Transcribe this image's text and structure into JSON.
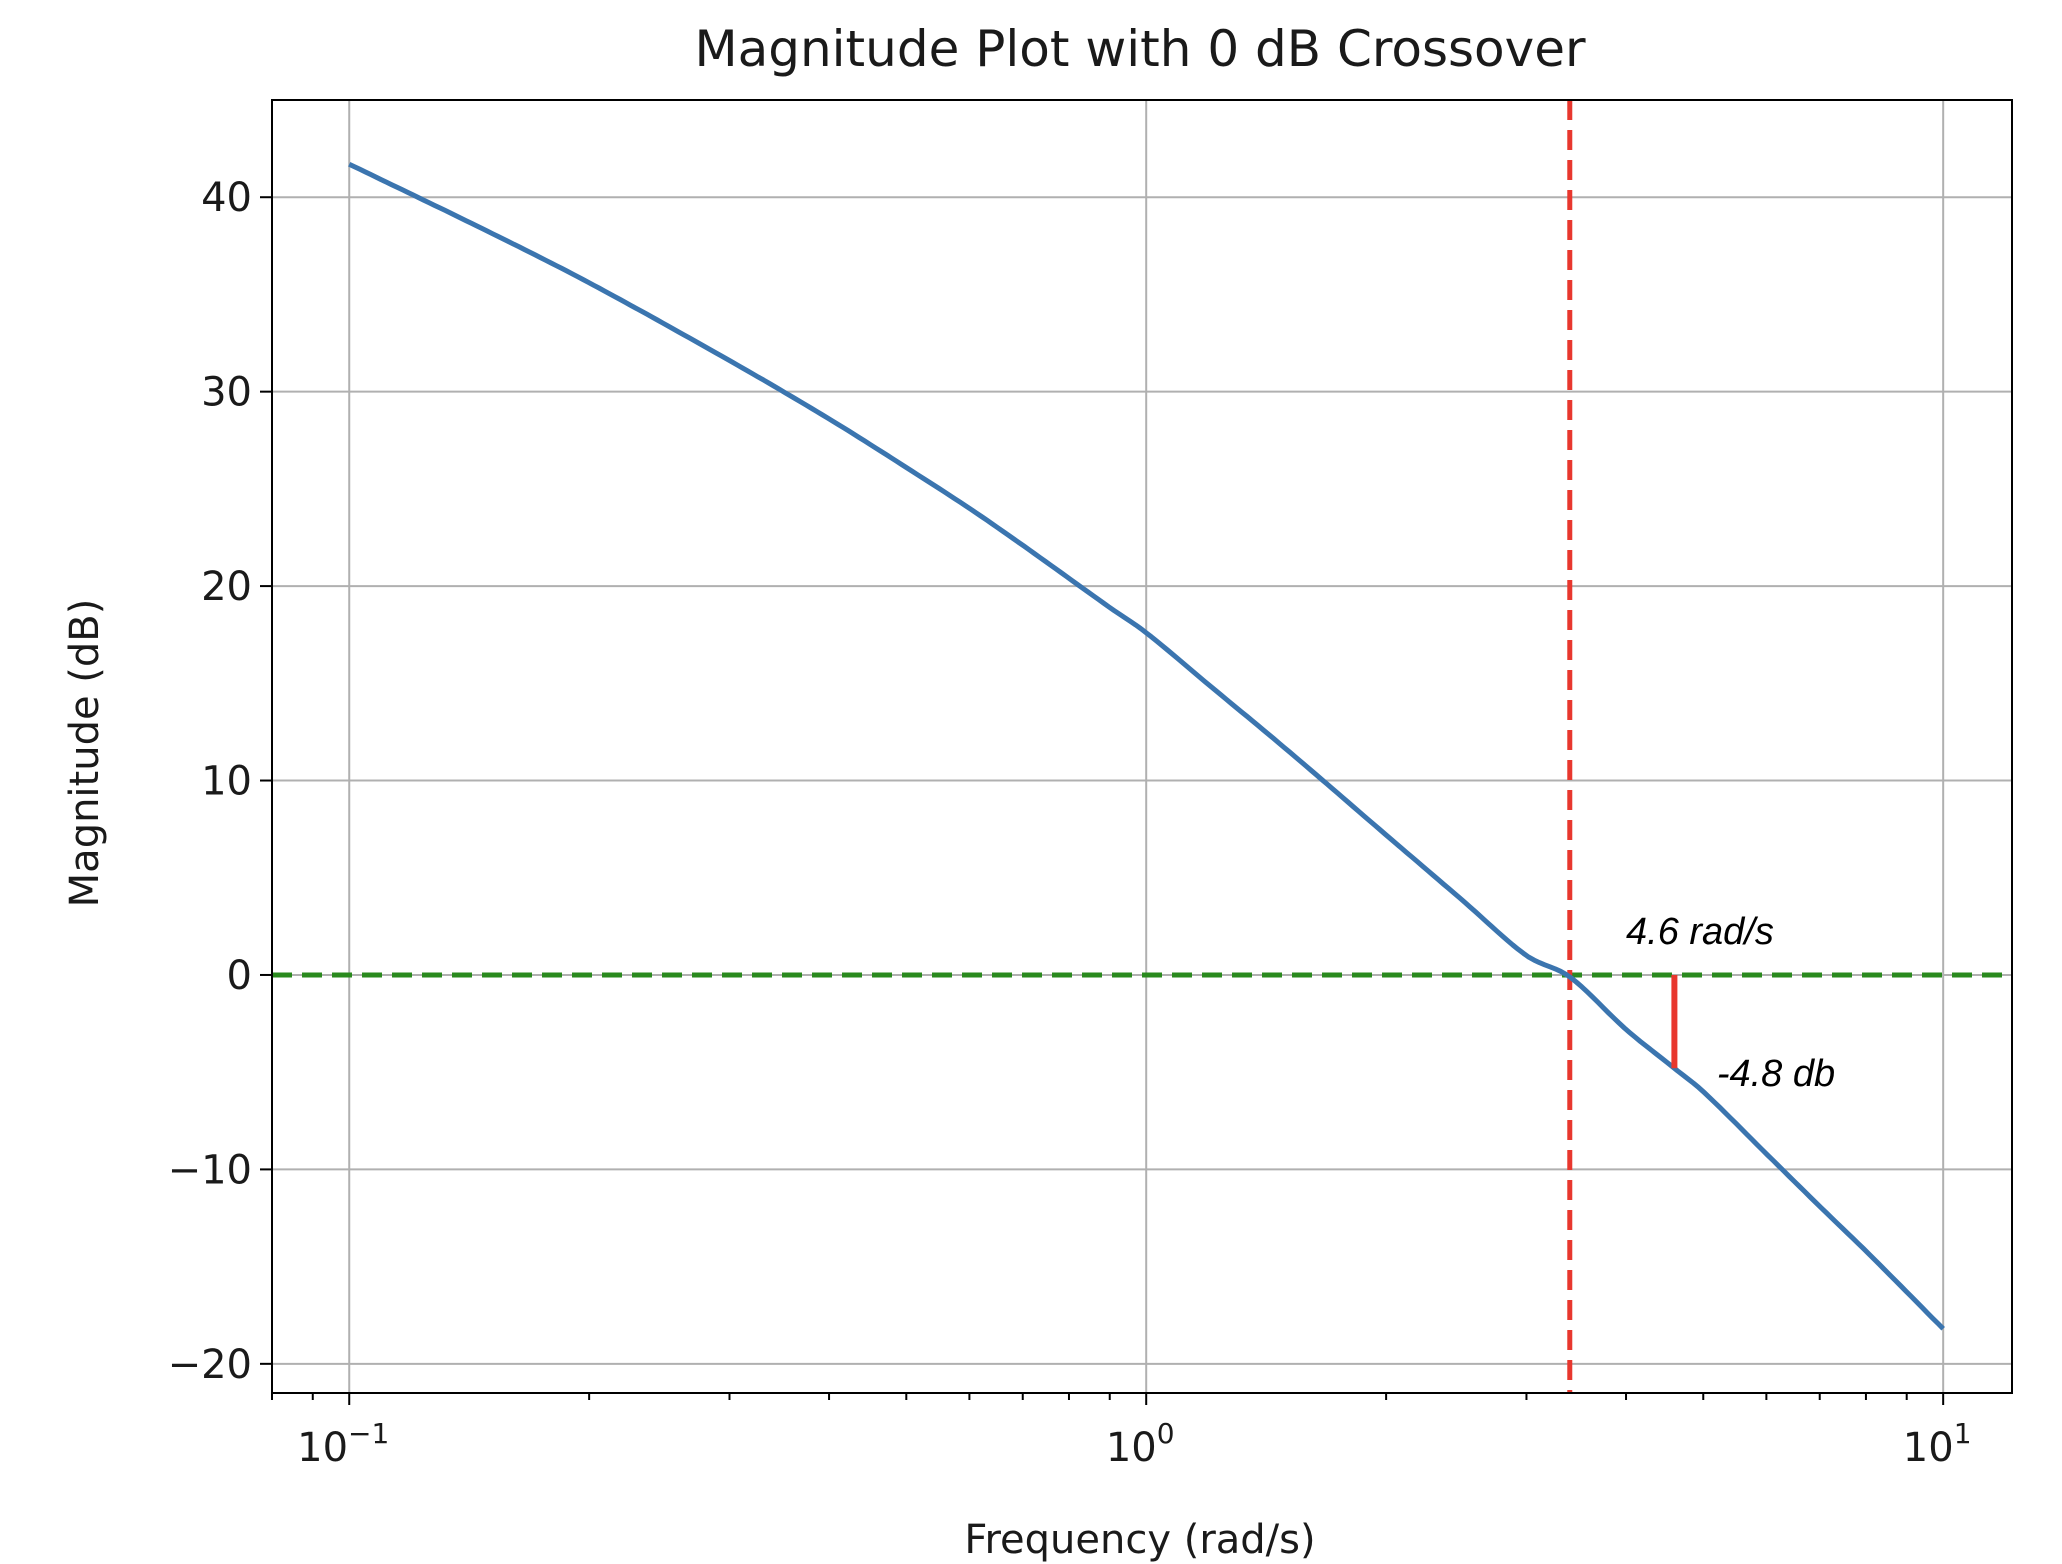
{
  "chart_data": {
    "type": "line",
    "title": "Magnitude Plot with 0 dB Crossover",
    "xlabel": "Frequency (rad/s)",
    "ylabel": "Magnitude (dB)",
    "x_scale": "log",
    "xlim": [
      0.08,
      12.2
    ],
    "ylim": [
      -21.5,
      45
    ],
    "grid": true,
    "x_ticks": [
      {
        "value": 0.1,
        "base": "10",
        "exp": "−1"
      },
      {
        "value": 1,
        "base": "10",
        "exp": "0"
      },
      {
        "value": 10,
        "base": "10",
        "exp": "1"
      }
    ],
    "x_minor_ticks": [
      0.08,
      0.09,
      0.2,
      0.3,
      0.4,
      0.5,
      0.6,
      0.7,
      0.8,
      0.9,
      2,
      3,
      4,
      5,
      6,
      7,
      8,
      9
    ],
    "y_ticks": [
      {
        "value": 40,
        "label": "40"
      },
      {
        "value": 30,
        "label": "30"
      },
      {
        "value": 20,
        "label": "20"
      },
      {
        "value": 10,
        "label": "10"
      },
      {
        "value": 0,
        "label": "0"
      },
      {
        "value": -10,
        "label": "−10"
      },
      {
        "value": -20,
        "label": "−20"
      }
    ],
    "series": [
      {
        "color": "#3b75af",
        "x": [
          0.1,
          0.15,
          0.2,
          0.3,
          0.4,
          0.5,
          0.6,
          0.7,
          0.8,
          0.9,
          1.0,
          1.2,
          1.5,
          2.0,
          2.5,
          3.0,
          3.4,
          4.0,
          4.6,
          5.0,
          6.0,
          7.0,
          8.0,
          9.0,
          10.0
        ],
        "y": [
          41.7,
          38.2,
          35.6,
          31.6,
          28.6,
          26.1,
          24.0,
          22.1,
          20.4,
          18.9,
          17.6,
          14.9,
          11.6,
          7.2,
          3.8,
          1.0,
          -0.1,
          -2.8,
          -4.8,
          -6.0,
          -9.2,
          -11.9,
          -14.2,
          -16.3,
          -18.2
        ]
      }
    ],
    "reference_lines": [
      {
        "orientation": "horizontal",
        "value": 0,
        "color": "#2a8a1e",
        "style": "dashed"
      },
      {
        "orientation": "vertical",
        "value": 3.4,
        "color": "#e8372e",
        "style": "dashed"
      }
    ],
    "annotations": [
      {
        "text": "4.6 rad/s",
        "x": 4.0,
        "y": 1.6
      },
      {
        "text": "-4.8 db",
        "x": 5.2,
        "y": -5.7
      }
    ],
    "marker_segment": {
      "x": 4.6,
      "y_from": 0,
      "y_to": -4.8,
      "color": "#e8372e"
    }
  }
}
